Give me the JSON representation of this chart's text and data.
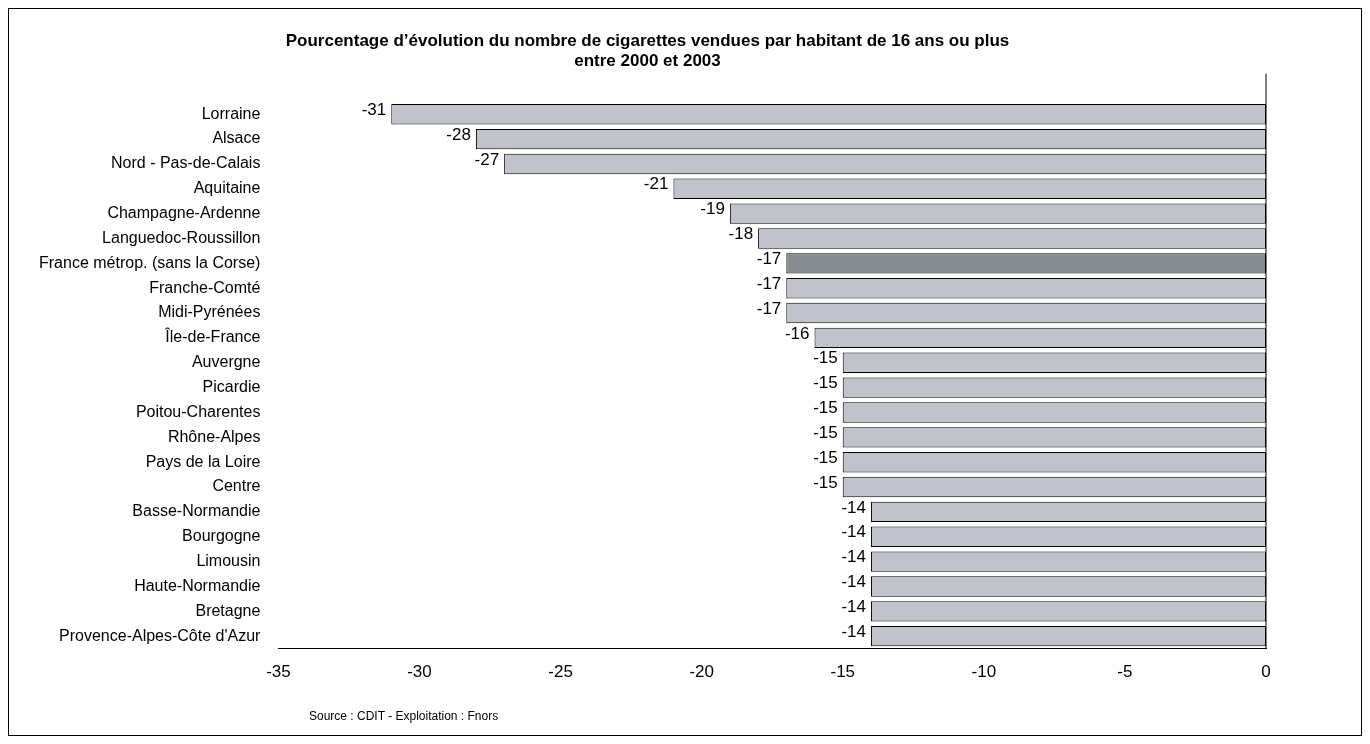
{
  "chart_data": {
    "type": "bar",
    "orientation": "horizontal",
    "title": "Pourcentage d’évolution du nombre de cigarettes vendues par habitant de 16 ans ou plus\nentre 2000 et 2003",
    "categories": [
      "Lorraine",
      "Alsace",
      "Nord - Pas-de-Calais",
      "Aquitaine",
      "Champagne-Ardenne",
      "Languedoc-Roussillon",
      "France métrop. (sans la Corse)",
      "Franche-Comté",
      "Midi-Pyrénées",
      "Île-de-France",
      "Auvergne",
      "Picardie",
      "Poitou-Charentes",
      "Rhône-Alpes",
      "Pays de la Loire",
      "Centre",
      "Basse-Normandie",
      "Bourgogne",
      "Limousin",
      "Haute-Normandie",
      "Bretagne",
      "Provence-Alpes-Côte d'Azur"
    ],
    "values": [
      -31,
      -28,
      -27,
      -21,
      -19,
      -18,
      -17,
      -17,
      -17,
      -16,
      -15,
      -15,
      -15,
      -15,
      -15,
      -15,
      -14,
      -14,
      -14,
      -14,
      -14,
      -14
    ],
    "colors": [
      "#c0c3cb",
      "#c0c3cb",
      "#c0c3cb",
      "#c0c3cb",
      "#c0c3cb",
      "#c0c3cb",
      "#878c93",
      "#c0c3cb",
      "#c0c3cb",
      "#c0c3cb",
      "#c0c3cb",
      "#c0c3cb",
      "#c0c3cb",
      "#c0c3cb",
      "#c0c3cb",
      "#c0c3cb",
      "#c0c3cb",
      "#c0c3cb",
      "#c0c3cb",
      "#c0c3cb",
      "#c0c3cb",
      "#c0c3cb"
    ],
    "xlim": [
      -35,
      0
    ],
    "xticks": [
      -35,
      -30,
      -25,
      -20,
      -15,
      -10,
      -5,
      0
    ],
    "data_labels": true,
    "grid": false,
    "legend": false,
    "annotations": [
      "Source : CDIT  -  Exploitation : Fnors"
    ]
  }
}
